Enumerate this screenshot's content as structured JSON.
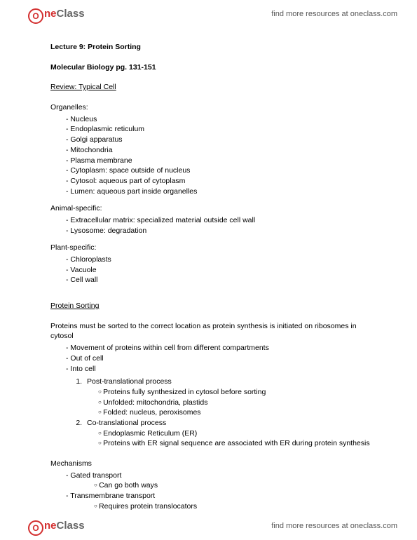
{
  "brand": {
    "circle_glyph": "O",
    "text_one": "ne",
    "text_class": "Class",
    "link_text": "find more resources at oneclass.com",
    "circle_color": "#d32f2f",
    "gray_color": "#666666"
  },
  "doc": {
    "title": "Lecture 9: Protein Sorting",
    "subtitle": "Molecular Biology pg. 131-151",
    "s1_heading": "Review: Typical Cell",
    "s1_label": "Organelles:",
    "s1_items": [
      "Nucleus",
      "Endoplasmic reticulum",
      "Golgi apparatus",
      "Mitochondria",
      "Plasma membrane",
      "Cytoplasm: space outside of nucleus",
      "Cytosol: aqueous part of cytoplasm",
      "Lumen: aqueous part inside organelles"
    ],
    "s2_label": "Animal-specific:",
    "s2_items": [
      "Extracellular matrix: specialized material outside cell wall",
      "Lysosome: degradation"
    ],
    "s3_label": "Plant-specific:",
    "s3_items": [
      "Chloroplasts",
      "Vacuole",
      "Cell wall"
    ],
    "s4_heading": "Protein Sorting",
    "s4_para": "Proteins must be sorted to the correct location as protein synthesis is initiated on ribosomes in cytosol",
    "s4_items": [
      "Movement of proteins within cell from different compartments",
      "Out of cell",
      "Into cell"
    ],
    "s4_num1": "Post-translational process",
    "s4_num1_sub": [
      "Proteins fully synthesized in cytosol before sorting",
      "Unfolded: mitochondria, plastids",
      "Folded: nucleus, peroxisomes"
    ],
    "s4_num2": "Co-translational process",
    "s4_num2_sub": [
      "Endoplasmic Reticulum (ER)",
      "Proteins with ER signal sequence are associated with ER during protein synthesis"
    ],
    "s5_label": "Mechanisms",
    "s5_i1": "Gated transport",
    "s5_i1_sub": [
      "Can go both ways"
    ],
    "s5_i2": "Transmembrane transport",
    "s5_i2_sub": [
      "Requires protein translocators"
    ]
  }
}
